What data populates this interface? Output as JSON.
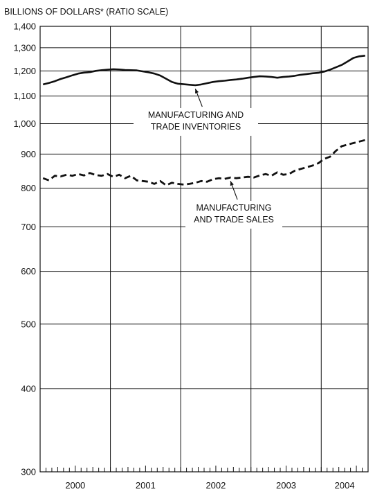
{
  "chart_data": {
    "type": "line",
    "title": "BILLIONS OF DOLLARS* (RATIO SCALE)",
    "y_scale": "log",
    "ylim": [
      300,
      1400
    ],
    "y_ticks": [
      300,
      400,
      500,
      600,
      700,
      800,
      900,
      1000,
      1100,
      1200,
      1300,
      1400
    ],
    "y_tick_labels": [
      "300",
      "400",
      "500",
      "600",
      "700",
      "800",
      "900",
      "1,000",
      "1,100",
      "1,200",
      "1,300",
      "1,400"
    ],
    "x_range": [
      "2000-01",
      "2004-08"
    ],
    "x_categories": [
      "2000",
      "2001",
      "2002",
      "2003",
      "2004"
    ],
    "grid": true,
    "series": [
      {
        "name": "MANUFACTURING AND TRADE INVENTORIES",
        "style": "solid",
        "x": [
          "2000-01",
          "2000-02",
          "2000-03",
          "2000-04",
          "2000-05",
          "2000-06",
          "2000-07",
          "2000-08",
          "2000-09",
          "2000-10",
          "2000-11",
          "2000-12",
          "2001-01",
          "2001-02",
          "2001-03",
          "2001-04",
          "2001-05",
          "2001-06",
          "2001-07",
          "2001-08",
          "2001-09",
          "2001-10",
          "2001-11",
          "2001-12",
          "2002-01",
          "2002-02",
          "2002-03",
          "2002-04",
          "2002-05",
          "2002-06",
          "2002-07",
          "2002-08",
          "2002-09",
          "2002-10",
          "2002-11",
          "2002-12",
          "2003-01",
          "2003-02",
          "2003-03",
          "2003-04",
          "2003-05",
          "2003-06",
          "2003-07",
          "2003-08",
          "2003-09",
          "2003-10",
          "2003-11",
          "2003-12",
          "2004-01",
          "2004-02",
          "2004-03",
          "2004-04",
          "2004-05",
          "2004-06",
          "2004-07",
          "2004-08"
        ],
        "values": [
          1145,
          1151,
          1158,
          1167,
          1174,
          1182,
          1189,
          1193,
          1195,
          1200,
          1203,
          1205,
          1207,
          1206,
          1204,
          1203,
          1202,
          1198,
          1194,
          1189,
          1181,
          1168,
          1155,
          1148,
          1146,
          1144,
          1142,
          1145,
          1150,
          1155,
          1158,
          1160,
          1163,
          1165,
          1168,
          1172,
          1175,
          1178,
          1177,
          1175,
          1172,
          1175,
          1177,
          1180,
          1184,
          1187,
          1190,
          1192,
          1197,
          1205,
          1215,
          1225,
          1240,
          1255,
          1262,
          1265
        ]
      },
      {
        "name": "MANUFACTURING AND TRADE SALES",
        "style": "dashed",
        "x": [
          "2000-01",
          "2000-02",
          "2000-03",
          "2000-04",
          "2000-05",
          "2000-06",
          "2000-07",
          "2000-08",
          "2000-09",
          "2000-10",
          "2000-11",
          "2000-12",
          "2001-01",
          "2001-02",
          "2001-03",
          "2001-04",
          "2001-05",
          "2001-06",
          "2001-07",
          "2001-08",
          "2001-09",
          "2001-10",
          "2001-11",
          "2001-12",
          "2002-01",
          "2002-02",
          "2002-03",
          "2002-04",
          "2002-05",
          "2002-06",
          "2002-07",
          "2002-08",
          "2002-09",
          "2002-10",
          "2002-11",
          "2002-12",
          "2003-01",
          "2003-02",
          "2003-03",
          "2003-04",
          "2003-05",
          "2003-06",
          "2003-07",
          "2003-08",
          "2003-09",
          "2003-10",
          "2003-11",
          "2003-12",
          "2004-01",
          "2004-02",
          "2004-03",
          "2004-04",
          "2004-05",
          "2004-06",
          "2004-07",
          "2004-08"
        ],
        "values": [
          828,
          822,
          835,
          833,
          838,
          835,
          840,
          836,
          843,
          837,
          835,
          840,
          832,
          838,
          828,
          835,
          822,
          820,
          818,
          812,
          820,
          808,
          815,
          812,
          810,
          812,
          815,
          820,
          818,
          825,
          828,
          826,
          830,
          828,
          830,
          832,
          830,
          836,
          840,
          835,
          845,
          838,
          840,
          850,
          855,
          860,
          865,
          872,
          885,
          892,
          910,
          925,
          930,
          935,
          940,
          945
        ]
      }
    ],
    "annotations": [
      {
        "lines": [
          "MANUFACTURING AND",
          "TRADE INVENTORIES"
        ],
        "target_series": 0,
        "target_x": "2002-03"
      },
      {
        "lines": [
          "MANUFACTURING",
          "AND TRADE SALES"
        ],
        "target_series": 1,
        "target_x": "2002-09"
      }
    ]
  }
}
